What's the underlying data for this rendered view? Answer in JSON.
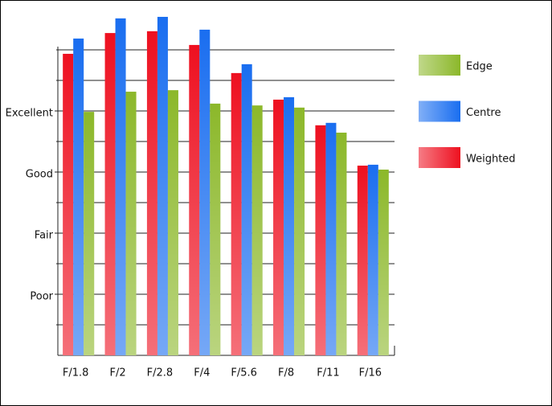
{
  "chart_data": {
    "type": "bar",
    "categories": [
      "F/1.8",
      "F/2",
      "F/2.8",
      "F/4",
      "F/5.6",
      "F/8",
      "F/11",
      "F/16"
    ],
    "series": [
      {
        "name": "Weighted",
        "color": "#ee1020",
        "values": [
          9.87,
          10.55,
          10.61,
          10.16,
          9.24,
          8.37,
          7.53,
          6.21
        ]
      },
      {
        "name": "Centre",
        "color": "#1a6ef0",
        "values": [
          10.37,
          11.03,
          11.08,
          10.66,
          9.53,
          8.45,
          7.61,
          6.24
        ]
      },
      {
        "name": "Edge",
        "color": "#8cb82a",
        "values": [
          7.97,
          8.63,
          8.68,
          8.24,
          8.18,
          8.11,
          7.29,
          6.08
        ]
      }
    ],
    "ylim": [
      0,
      11.2
    ],
    "yticks": [
      {
        "value": 2,
        "label": "Poor"
      },
      {
        "value": 4,
        "label": "Fair"
      },
      {
        "value": 6,
        "label": "Good"
      },
      {
        "value": 8,
        "label": "Excellent"
      }
    ],
    "grid_lines": [
      1,
      2,
      3,
      4,
      5,
      6,
      7,
      8,
      9,
      10
    ],
    "legend": "right"
  }
}
